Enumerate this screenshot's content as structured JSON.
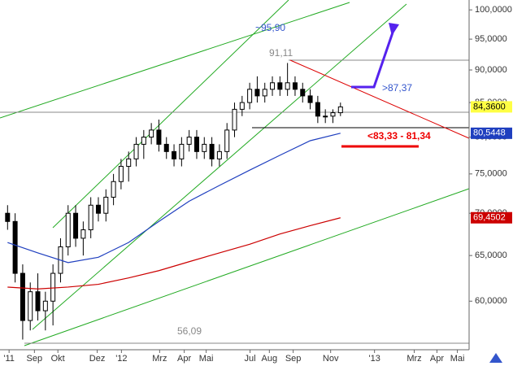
{
  "chart_data": {
    "type": "candlestick",
    "log_scale": true,
    "xlim": [
      -2,
      122
    ],
    "ylim": [
      55.1,
      101.75
    ],
    "xticks": [
      {
        "value": 0.4,
        "label": "'11"
      },
      {
        "value": 7.1,
        "label": "Sep"
      },
      {
        "value": 13.3,
        "label": "Okt"
      },
      {
        "value": 23.7,
        "label": "Dez"
      },
      {
        "value": 30.1,
        "label": "'12"
      },
      {
        "value": 40.2,
        "label": "Mrz"
      },
      {
        "value": 46.7,
        "label": "Apr"
      },
      {
        "value": 52.5,
        "label": "Mai"
      },
      {
        "value": 64.1,
        "label": "Jul"
      },
      {
        "value": 69.2,
        "label": "Aug"
      },
      {
        "value": 75.5,
        "label": "Sep"
      },
      {
        "value": 85.4,
        "label": "Nov"
      },
      {
        "value": 97,
        "label": "'13"
      },
      {
        "value": 107.5,
        "label": "Mrz"
      },
      {
        "value": 113.5,
        "label": "Apr"
      },
      {
        "value": 118.9,
        "label": "Mai"
      }
    ],
    "yticks": [
      {
        "value": 60,
        "label": "60,0000"
      },
      {
        "value": 65,
        "label": "65,0000"
      },
      {
        "value": 70,
        "label": "70,0000"
      },
      {
        "value": 75,
        "label": "75,0000"
      },
      {
        "value": 80,
        "label": "80,0000"
      },
      {
        "value": 85,
        "label": "85,0000"
      },
      {
        "value": 90,
        "label": "90,0000"
      },
      {
        "value": 95,
        "label": "95,0000"
      },
      {
        "value": 100,
        "label": "100,0000"
      }
    ],
    "series": [
      {
        "type": "candlestick",
        "color": "#000000",
        "x": [
          0,
          2,
          4,
          6,
          8,
          10,
          12,
          14,
          16,
          18,
          20,
          22,
          24,
          26,
          28,
          30,
          32,
          34,
          36,
          38,
          40,
          42,
          44,
          46,
          48,
          50,
          52,
          54,
          56,
          58,
          60,
          62,
          64,
          66,
          68,
          70,
          72,
          74,
          76,
          78,
          80,
          82,
          84,
          86,
          88
        ],
        "open": [
          70,
          69,
          63,
          58,
          61,
          59,
          60,
          63,
          66,
          70,
          67,
          68,
          71,
          70,
          72,
          74,
          76,
          77,
          79,
          80,
          81,
          79,
          78,
          77,
          79,
          80,
          78,
          79,
          77,
          78,
          81,
          84,
          85,
          87,
          86,
          87,
          88,
          87,
          88,
          87,
          86,
          85,
          83,
          83,
          83.5
        ],
        "high": [
          71,
          70,
          64,
          62,
          63,
          61,
          64,
          67,
          71,
          71,
          69,
          72,
          72,
          73,
          75,
          77,
          78,
          80,
          81,
          82,
          82.5,
          80,
          79,
          80,
          81,
          81,
          80,
          80,
          79,
          82,
          85,
          86,
          88,
          89,
          88,
          89,
          89,
          91.11,
          89,
          88,
          87,
          86,
          84,
          84,
          85
        ],
        "low": [
          68,
          62,
          56.09,
          57,
          58,
          57,
          57.5,
          62,
          65,
          66,
          65,
          67,
          69,
          69,
          71,
          73,
          74,
          76,
          77,
          79,
          78,
          77,
          76,
          76,
          78,
          77,
          77,
          76,
          76,
          77,
          80,
          83,
          84,
          85,
          85,
          86,
          86,
          86,
          86,
          85,
          84,
          82,
          82,
          82,
          83
        ],
        "close": [
          69,
          63,
          58,
          61,
          59,
          60,
          63,
          66,
          70,
          67,
          68,
          71,
          70,
          72,
          74,
          76,
          77,
          79,
          80,
          81,
          79,
          78,
          77,
          79,
          80,
          78,
          79,
          77,
          78,
          81,
          84,
          85,
          87,
          86,
          87,
          88,
          87,
          88,
          87,
          86,
          85,
          83,
          83,
          83.5,
          84.36
        ],
        "value_labels": [
          null,
          null,
          null,
          null,
          null,
          null,
          null,
          null,
          null,
          null,
          null,
          null,
          null,
          null,
          null,
          null,
          null,
          null,
          null,
          null,
          null,
          null,
          null,
          null,
          null,
          null,
          null,
          null,
          null,
          null,
          null,
          null,
          null,
          null,
          null,
          null,
          null,
          null,
          null,
          null,
          null,
          null,
          null,
          null,
          "84,3600"
        ]
      },
      {
        "type": "line",
        "color": "#1f3fbf",
        "x": [
          0,
          8,
          16,
          24,
          32,
          40,
          48,
          56,
          64,
          72,
          80,
          88
        ],
        "values": [
          66.5,
          65.3,
          64.2,
          64.8,
          66.5,
          69,
          71.5,
          73.5,
          75.5,
          77.5,
          79.5,
          80.5448
        ],
        "value_labels": [
          null,
          null,
          null,
          null,
          null,
          null,
          null,
          null,
          null,
          null,
          null,
          "80,5448"
        ]
      },
      {
        "type": "line",
        "color": "#cc0000",
        "x": [
          0,
          8,
          16,
          24,
          32,
          40,
          48,
          56,
          64,
          72,
          80,
          88
        ],
        "values": [
          61.5,
          61.3,
          61.5,
          61.8,
          62.5,
          63.3,
          64.3,
          65.3,
          66.3,
          67.5,
          68.5,
          69.4502
        ],
        "value_labels": [
          null,
          null,
          null,
          null,
          null,
          null,
          null,
          null,
          null,
          null,
          null,
          "69,4502"
        ]
      }
    ],
    "annotations": [
      "~95,90",
      "91,11",
      ">87,37",
      "<83,33 - 81,34",
      "56,09"
    ]
  }
}
